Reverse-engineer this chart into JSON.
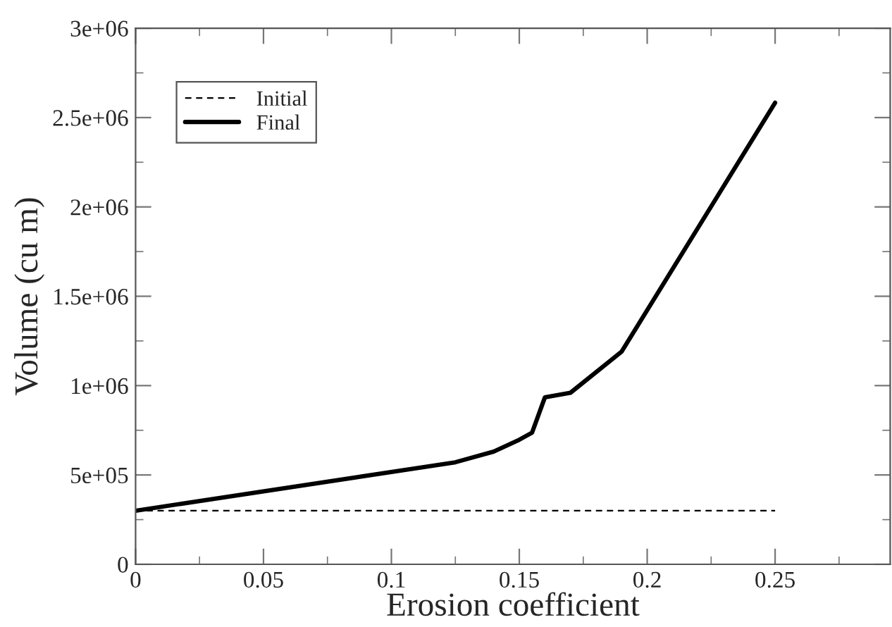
{
  "chart_data": {
    "type": "line",
    "xlabel": "Erosion coefficient",
    "ylabel": "Volume (cu m)",
    "xlim": [
      0,
      0.295
    ],
    "ylim": [
      0,
      3000000
    ],
    "xticks": [
      0,
      0.05,
      0.1,
      0.15,
      0.2,
      0.25
    ],
    "yticks": [
      0,
      {
        "value": 500000,
        "label": "5e+05"
      },
      {
        "value": 1000000,
        "label": "1e+06"
      },
      {
        "value": 1500000,
        "label": "1.5e+06"
      },
      {
        "value": 2000000,
        "label": "2e+06"
      },
      {
        "value": 2500000,
        "label": "2.5e+06"
      },
      {
        "value": 3000000,
        "label": "3e+06"
      }
    ],
    "legend": "top left",
    "grid": false,
    "series": [
      {
        "name": "Initial",
        "color": "#000000",
        "line_style": "dashed",
        "x": [
          0,
          0.25
        ],
        "values": [
          300000,
          300000
        ]
      },
      {
        "name": "Final",
        "color": "#000000",
        "line_style": "solid",
        "x": [
          0,
          0.125,
          0.14,
          0.15,
          0.155,
          0.16,
          0.17,
          0.19,
          0.25
        ],
        "values": [
          300000,
          571000,
          631000,
          697000,
          737000,
          934000,
          960000,
          1190000,
          2583000
        ]
      }
    ]
  }
}
